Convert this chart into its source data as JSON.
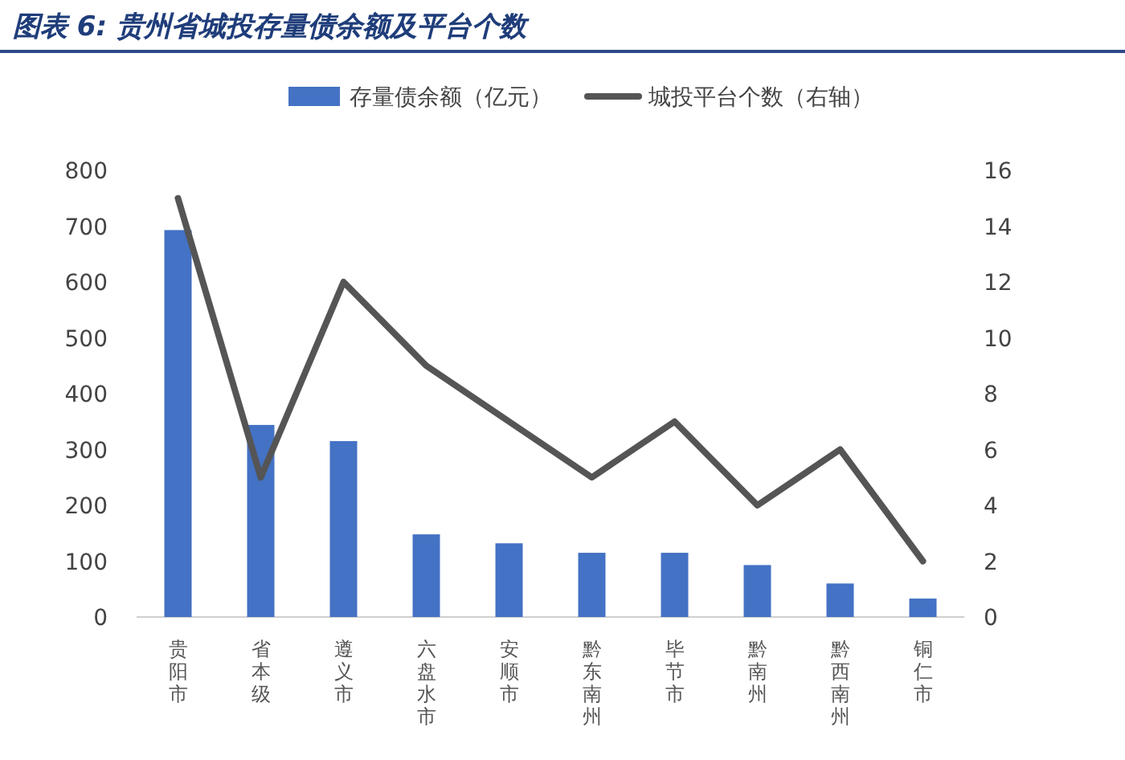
{
  "chart_data": {
    "type": "bar",
    "title": "图表 6: 贵州省城投存量债余额及平台个数",
    "categories": [
      "贵阳市",
      "省本级",
      "遵义市",
      "六盘水市",
      "安顺市",
      "黔东南州",
      "毕节市",
      "黔南州",
      "黔西南州",
      "铜仁市"
    ],
    "series": [
      {
        "name": "存量债余额（亿元）",
        "color": "#4472c4",
        "values": [
          693,
          344,
          315,
          148,
          132,
          115,
          115,
          93,
          60,
          33
        ]
      },
      {
        "name": "城投平台个数（右轴）",
        "type": "line",
        "axis": "y2",
        "color": "#555555",
        "values": [
          15,
          5,
          12,
          9,
          7,
          5,
          7,
          4,
          6,
          2
        ]
      }
    ],
    "ylim": [
      0,
      800
    ],
    "yticks": [
      0,
      100,
      200,
      300,
      400,
      500,
      600,
      700,
      800
    ],
    "y2lim": [
      0,
      16
    ],
    "y2ticks": [
      0,
      2,
      4,
      6,
      8,
      10,
      12,
      14,
      16
    ],
    "grid": false,
    "legend": "top",
    "marker": "none",
    "line_style": "solid"
  }
}
